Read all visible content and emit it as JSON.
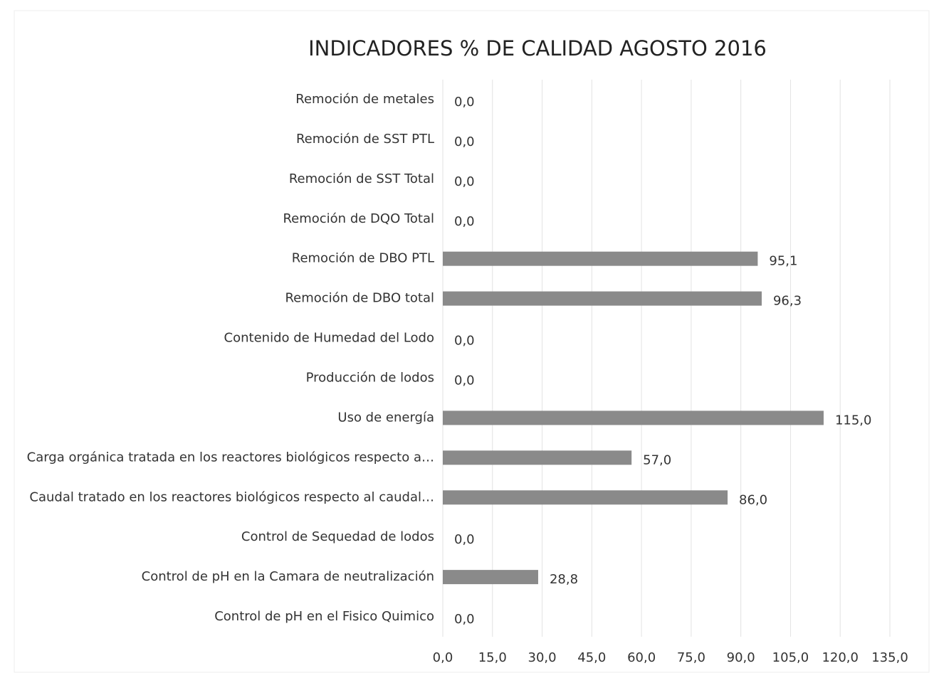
{
  "chart_data": {
    "type": "barh",
    "title": "INDICADORES % DE CALIDAD AGOSTO 2016",
    "categories": [
      "Remoción de metales",
      "Remoción de SST PTL",
      "Remoción de SST Total",
      "Remoción de DQO Total",
      "Remoción de DBO PTL",
      "Remoción de DBO total",
      "Contenido de Humedad del Lodo",
      "Producción de lodos",
      "Uso de energía",
      "Carga orgánica tratada en los reactores biológicos respecto a…",
      "Caudal tratado en los reactores biológicos respecto al caudal…",
      "Control de Sequedad de lodos",
      "Control de pH en la Camara de neutralización",
      "Control de pH en el Fisico Quimico"
    ],
    "values": [
      0,
      0,
      0,
      0,
      95.1,
      96.3,
      0,
      0,
      115,
      57,
      86,
      0,
      28.8,
      0
    ],
    "value_labels": [
      "0,0",
      "0,0",
      "0,0",
      "0,0",
      "95,1",
      "96,3",
      "0,0",
      "0,0",
      "115,0",
      "57,0",
      "86,0",
      "0,0",
      "28,8",
      "0,0"
    ],
    "color": "#8a8a8a",
    "xlim": [
      0,
      135
    ],
    "xticks": [
      {
        "value": 0,
        "label": "0,0"
      },
      {
        "value": 15,
        "label": "15,0"
      },
      {
        "value": 30,
        "label": "30,0"
      },
      {
        "value": 45,
        "label": "45,0"
      },
      {
        "value": 60,
        "label": "60,0"
      },
      {
        "value": 75,
        "label": "75,0"
      },
      {
        "value": 90,
        "label": "90,0"
      },
      {
        "value": 105,
        "label": "105,0"
      },
      {
        "value": 120,
        "label": "120,0"
      },
      {
        "value": 135,
        "label": "135,0"
      }
    ],
    "grid": true
  }
}
